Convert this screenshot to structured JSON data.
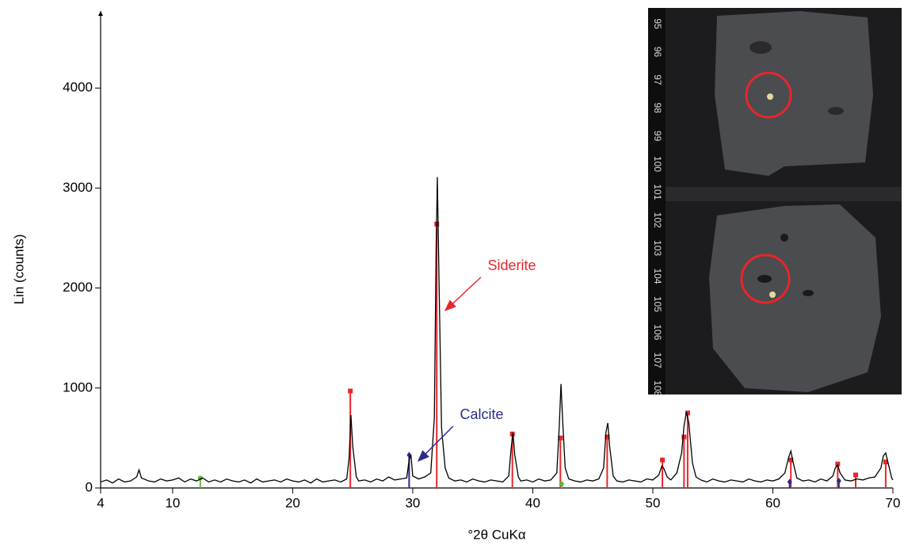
{
  "chart_data": {
    "type": "line",
    "xlabel": "°2θ CuKα",
    "ylabel": "Lin (counts)",
    "color": "#000000",
    "xlim": [
      4,
      70
    ],
    "ylim": [
      0,
      4770
    ],
    "xticks": [
      4,
      10,
      20,
      30,
      40,
      50,
      60,
      70
    ],
    "yticks": [
      0,
      1000,
      2000,
      3000,
      4000
    ],
    "x": [
      4,
      4.5,
      5,
      5.5,
      6,
      6.5,
      7,
      7.2,
      7.4,
      8,
      8.5,
      9,
      9.5,
      10,
      10.5,
      11,
      11.5,
      12,
      12.5,
      13,
      13.5,
      14,
      14.5,
      15,
      15.5,
      16,
      16.5,
      17,
      17.5,
      18,
      18.5,
      19,
      19.5,
      20,
      20.5,
      21,
      21.5,
      22,
      22.5,
      23,
      23.5,
      24,
      24.5,
      24.7,
      24.85,
      25.0,
      25.3,
      25.5,
      26,
      26.5,
      27,
      27.5,
      28,
      28.5,
      29,
      29.5,
      29.7,
      29.85,
      30.0,
      30.5,
      31,
      31.5,
      31.8,
      31.95,
      32.05,
      32.2,
      32.4,
      32.7,
      33,
      33.5,
      34,
      34.5,
      35,
      35.5,
      36,
      36.5,
      37,
      37.5,
      38,
      38.2,
      38.35,
      38.5,
      38.8,
      39,
      39.5,
      40,
      40.5,
      41,
      41.5,
      42,
      42.2,
      42.35,
      42.5,
      42.7,
      43,
      43.5,
      44,
      44.5,
      45,
      45.5,
      45.9,
      46.1,
      46.25,
      46.4,
      46.7,
      47,
      47.5,
      48,
      48.5,
      49,
      49.5,
      50,
      50.5,
      50.75,
      50.9,
      51.2,
      51.5,
      52,
      52.4,
      52.6,
      52.8,
      53.0,
      53.3,
      53.6,
      54,
      54.5,
      55,
      55.5,
      56,
      56.5,
      57,
      57.5,
      58,
      58.5,
      59,
      59.5,
      60,
      60.5,
      61,
      61.3,
      61.5,
      61.7,
      62,
      62.5,
      63,
      63.5,
      64,
      64.5,
      65,
      65.2,
      65.4,
      65.6,
      66,
      66.5,
      67,
      67.5,
      68,
      68.5,
      69,
      69.2,
      69.4,
      69.6,
      69.9,
      70
    ],
    "values": [
      60,
      80,
      50,
      90,
      60,
      70,
      110,
      180,
      100,
      70,
      60,
      90,
      70,
      80,
      100,
      60,
      90,
      70,
      100,
      60,
      80,
      60,
      90,
      70,
      60,
      80,
      50,
      90,
      60,
      70,
      80,
      60,
      90,
      70,
      60,
      80,
      50,
      90,
      60,
      70,
      80,
      60,
      90,
      300,
      730,
      420,
      110,
      70,
      80,
      60,
      90,
      70,
      110,
      80,
      90,
      100,
      280,
      330,
      120,
      90,
      110,
      150,
      700,
      2400,
      3110,
      2000,
      600,
      200,
      100,
      70,
      80,
      60,
      90,
      70,
      60,
      80,
      70,
      60,
      120,
      400,
      550,
      330,
      110,
      70,
      80,
      60,
      90,
      70,
      80,
      150,
      600,
      1040,
      650,
      200,
      90,
      70,
      60,
      80,
      70,
      90,
      200,
      560,
      650,
      420,
      120,
      70,
      60,
      80,
      70,
      60,
      90,
      80,
      130,
      220,
      200,
      110,
      80,
      150,
      350,
      620,
      760,
      650,
      250,
      110,
      80,
      60,
      90,
      70,
      60,
      80,
      70,
      60,
      90,
      70,
      60,
      80,
      70,
      90,
      150,
      300,
      370,
      250,
      100,
      70,
      80,
      60,
      90,
      70,
      120,
      200,
      230,
      150,
      80,
      70,
      90,
      80,
      100,
      110,
      200,
      320,
      350,
      250,
      100,
      80
    ],
    "markers": [
      {
        "shape": "square",
        "color": "#e8262a",
        "x": [
          24.8,
          32.0,
          38.3,
          42.3,
          46.2,
          50.8,
          52.6,
          52.9,
          61.5,
          65.4,
          66.9,
          69.4
        ],
        "values": [
          970,
          2640,
          540,
          500,
          510,
          280,
          510,
          750,
          280,
          240,
          130,
          260
        ]
      },
      {
        "shape": "diamond",
        "color": "#2b2a8c",
        "x": [
          29.7,
          61.4,
          65.5
        ],
        "values": [
          330,
          60,
          70
        ]
      },
      {
        "shape": "circle",
        "color": "#5cb83a",
        "x": [
          12.3,
          42.4
        ],
        "values": [
          100,
          40
        ]
      }
    ],
    "annotations": [
      {
        "text": "Siderite",
        "color": "#e8262a"
      },
      {
        "text": "Calcite",
        "color": "#2b2a8c"
      }
    ],
    "inset_scale_labels": [
      "95",
      "96",
      "97",
      "98",
      "99",
      "100",
      "101",
      "102",
      "103",
      "104",
      "105",
      "106",
      "107",
      "108"
    ]
  }
}
